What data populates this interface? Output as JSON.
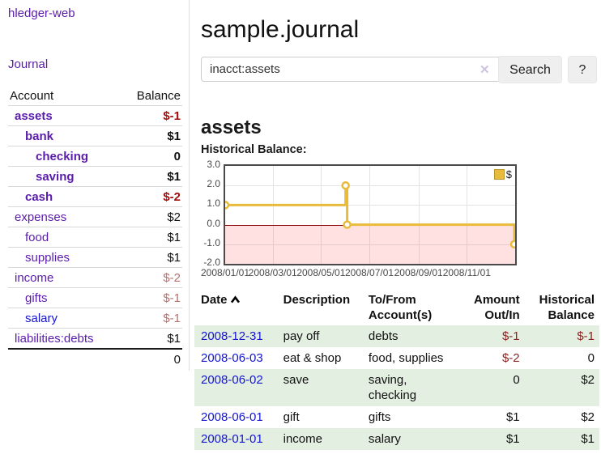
{
  "colors": {
    "purple_link": "#5a1cab",
    "blue_link": "#1515d0",
    "text": "#111111",
    "neg_strong": "#a30d0d",
    "neg_muted": "#b57070",
    "neg_table": "#8e2222",
    "row_green": "#e3efe0",
    "chart_line": "#e8bb3a",
    "chart_legend_border": "#b8962e",
    "chart_fill_negative": "rgba(255,90,90,0.18)",
    "zero_line": "#8b0000"
  },
  "sidebar": {
    "app_title": "hledger-web",
    "journal_link": "Journal",
    "accounts": {
      "header_account": "Account",
      "header_balance": "Balance",
      "rows": [
        {
          "name": "assets",
          "balance": "$-1",
          "indent": 1,
          "bold": true,
          "balance_style": "neg_strong",
          "link_color": "purple"
        },
        {
          "name": "bank",
          "balance": "$1",
          "indent": 2,
          "bold": true,
          "balance_style": "normal",
          "link_color": "purple"
        },
        {
          "name": "checking",
          "balance": "0",
          "indent": 3,
          "bold": true,
          "balance_style": "normal",
          "link_color": "purple"
        },
        {
          "name": "saving",
          "balance": "$1",
          "indent": 3,
          "bold": true,
          "balance_style": "normal",
          "link_color": "purple"
        },
        {
          "name": "cash",
          "balance": "$-2",
          "indent": 2,
          "bold": true,
          "balance_style": "neg_strong",
          "link_color": "purple"
        },
        {
          "name": "expenses",
          "balance": "$2",
          "indent": 1,
          "bold": false,
          "balance_style": "normal",
          "link_color": "purple"
        },
        {
          "name": "food",
          "balance": "$1",
          "indent": 2,
          "bold": false,
          "balance_style": "normal",
          "link_color": "purple"
        },
        {
          "name": "supplies",
          "balance": "$1",
          "indent": 2,
          "bold": false,
          "balance_style": "normal",
          "link_color": "purple"
        },
        {
          "name": "income",
          "balance": "$-2",
          "indent": 1,
          "bold": false,
          "balance_style": "neg_muted",
          "link_color": "purple"
        },
        {
          "name": "gifts",
          "balance": "$-1",
          "indent": 2,
          "bold": false,
          "balance_style": "neg_muted",
          "link_color": "purple"
        },
        {
          "name": "salary",
          "balance": "$-1",
          "indent": 2,
          "bold": false,
          "balance_style": "neg_muted",
          "link_color": "blue"
        },
        {
          "name": "liabilities:debts",
          "balance": "$1",
          "indent": 1,
          "bold": false,
          "balance_style": "normal",
          "link_color": "purple"
        }
      ],
      "total": "0"
    }
  },
  "main": {
    "title": "sample.journal",
    "search": {
      "value": "inacct:assets",
      "clear_icon": "✕",
      "search_label": "Search",
      "help_label": "?"
    },
    "account_heading": "assets",
    "section_label": "Historical Balance:"
  },
  "chart_data": {
    "type": "line",
    "step": true,
    "title": "Historical Balance",
    "series": [
      {
        "name": "$",
        "points": [
          [
            "2008-01-01",
            1
          ],
          [
            "2008-06-01",
            2
          ],
          [
            "2008-06-03",
            0
          ],
          [
            "2008-12-31",
            -1
          ]
        ]
      }
    ],
    "xrange": [
      "2008-01-01",
      "2009-01-01"
    ],
    "ylim": [
      -2,
      3
    ],
    "yticks": [
      "3.0",
      "2.0",
      "1.0",
      "0.0",
      "-1.0",
      "-2.0"
    ],
    "xticks": [
      "2008/01/01",
      "2008/03/01",
      "2008/05/01",
      "2008/07/01",
      "2008/09/01",
      "2008/11/01"
    ],
    "legend_position": "top-right",
    "negative_region_shaded": true,
    "grid": true
  },
  "transactions": {
    "headers": {
      "date": "Date",
      "description": "Description",
      "account": "To/From Account(s)",
      "amount": "Amount Out/In",
      "balance": "Historical Balance"
    },
    "sort_icon": "chevron-up",
    "rows": [
      {
        "date": "2008-12-31",
        "description": "pay off",
        "accounts": "debts",
        "amount": "$-1",
        "amount_neg": true,
        "balance": "$-1",
        "balance_neg": true
      },
      {
        "date": "2008-06-03",
        "description": "eat & shop",
        "accounts": "food, supplies",
        "amount": "$-2",
        "amount_neg": true,
        "balance": "0",
        "balance_neg": false
      },
      {
        "date": "2008-06-02",
        "description": "save",
        "accounts": "saving, checking",
        "amount": "0",
        "amount_neg": false,
        "balance": "$2",
        "balance_neg": false
      },
      {
        "date": "2008-06-01",
        "description": "gift",
        "accounts": "gifts",
        "amount": "$1",
        "amount_neg": false,
        "balance": "$2",
        "balance_neg": false
      },
      {
        "date": "2008-01-01",
        "description": "income",
        "accounts": "salary",
        "amount": "$1",
        "amount_neg": false,
        "balance": "$1",
        "balance_neg": false
      }
    ]
  }
}
